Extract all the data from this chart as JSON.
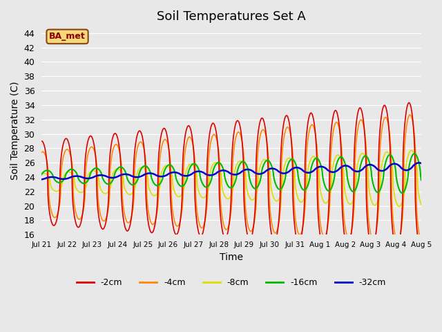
{
  "title": "Soil Temperatures Set A",
  "xlabel": "Time",
  "ylabel": "Soil Temperature (C)",
  "ylim": [
    16,
    45
  ],
  "yticks": [
    16,
    18,
    20,
    22,
    24,
    26,
    28,
    30,
    32,
    34,
    36,
    38,
    40,
    42,
    44
  ],
  "colors": {
    "-2cm": "#dd0000",
    "-4cm": "#ff8800",
    "-8cm": "#dddd00",
    "-16cm": "#00bb00",
    "-32cm": "#0000cc"
  },
  "legend_labels": [
    "-2cm",
    "-4cm",
    "-8cm",
    "-16cm",
    "-32cm"
  ],
  "xtick_labels": [
    "Jul 21",
    "Jul 22",
    "Jul 23",
    "Jul 24",
    "Jul 25",
    "Jul 26",
    "Jul 27",
    "Jul 28",
    "Jul 29",
    "Jul 30",
    "Jul 31",
    "Aug 1",
    "Aug 2",
    "Aug 3",
    "Aug 4",
    "Aug 5"
  ],
  "background_color": "#e8e8e8",
  "plot_bg_color": "#e8e8e8",
  "watermark_text": "BA_met",
  "n_days": 15.5,
  "pts_per_hour": 4
}
